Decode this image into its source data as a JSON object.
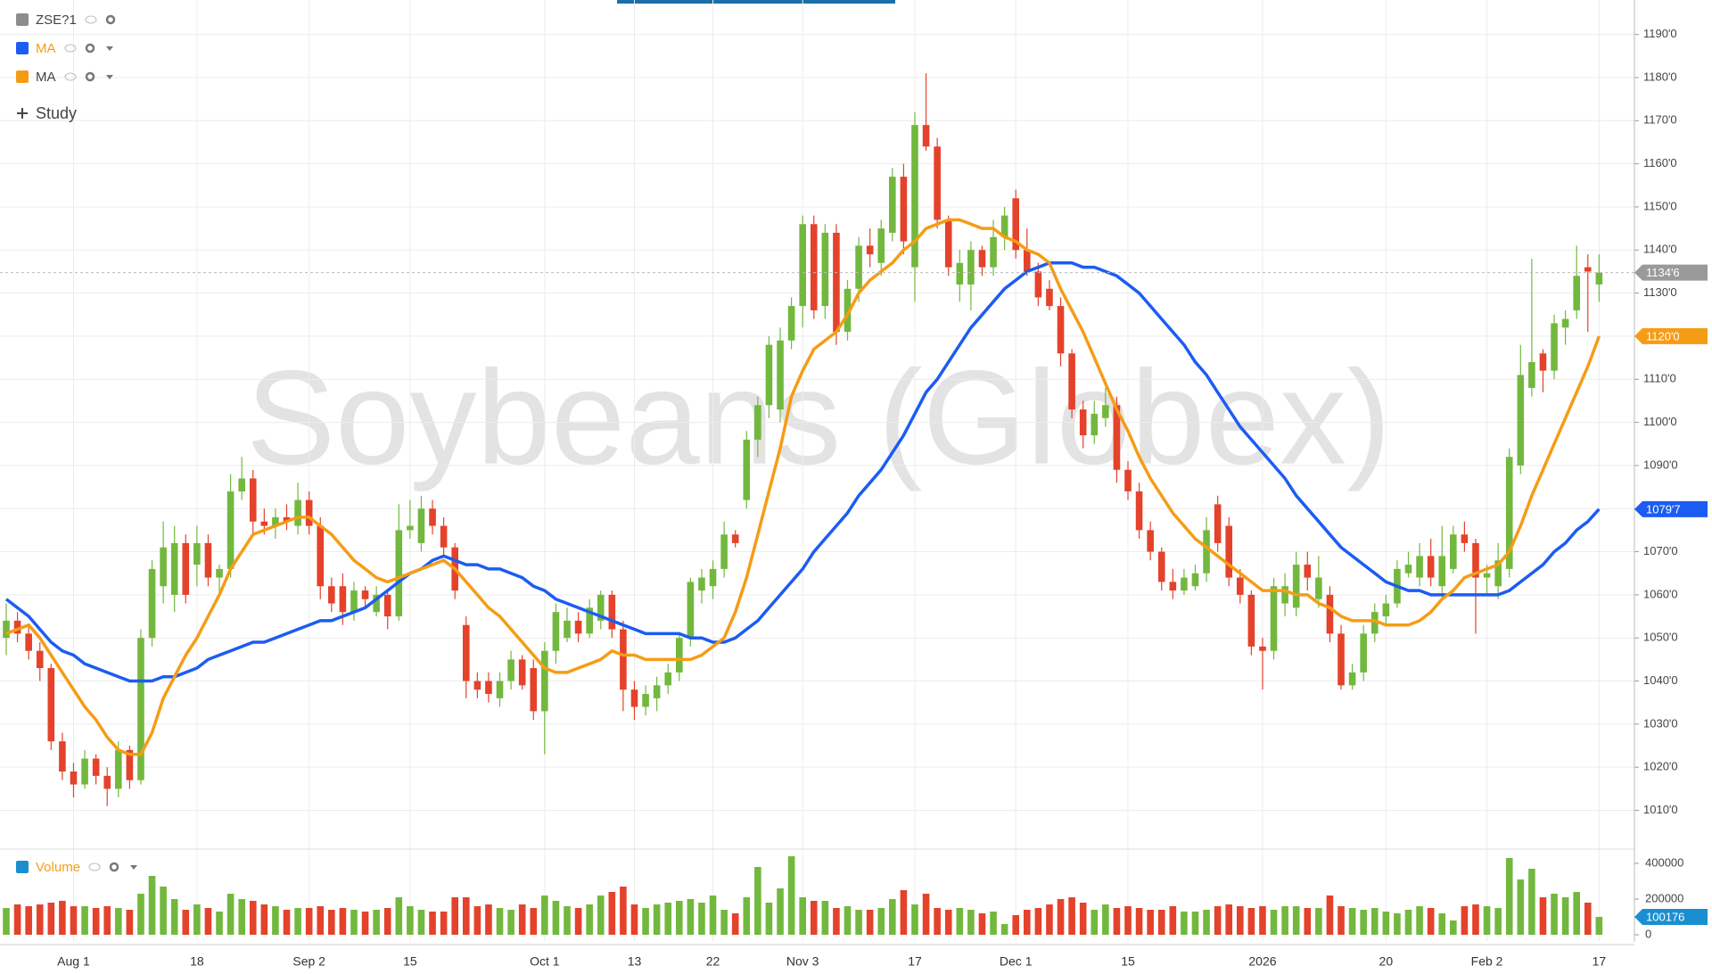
{
  "legend": {
    "symbol": "ZSE?1",
    "add_study": "Study",
    "volume_label": "Volume"
  },
  "chart_data": [
    {
      "type": "candlestick",
      "watermark": "Soybeans (Globex)",
      "categories": [
        null,
        null,
        null,
        null,
        null,
        null,
        "Aug 1",
        null,
        null,
        null,
        null,
        null,
        null,
        null,
        null,
        null,
        null,
        "18",
        null,
        null,
        null,
        null,
        null,
        null,
        null,
        null,
        null,
        "Sep 2",
        null,
        null,
        null,
        null,
        null,
        null,
        null,
        null,
        "15",
        null,
        null,
        null,
        null,
        null,
        null,
        null,
        null,
        null,
        null,
        null,
        "Oct 1",
        null,
        null,
        null,
        null,
        null,
        null,
        null,
        "13",
        null,
        null,
        null,
        null,
        null,
        null,
        "22",
        null,
        null,
        null,
        null,
        null,
        null,
        null,
        "Nov 3",
        null,
        null,
        null,
        null,
        null,
        null,
        null,
        null,
        null,
        "17",
        null,
        null,
        null,
        null,
        null,
        null,
        null,
        null,
        "Dec 1",
        null,
        null,
        null,
        null,
        null,
        null,
        null,
        null,
        null,
        "15",
        null,
        null,
        null,
        null,
        null,
        null,
        null,
        null,
        null,
        null,
        null,
        "2026",
        null,
        null,
        null,
        null,
        null,
        null,
        null,
        null,
        null,
        null,
        "20",
        null,
        null,
        null,
        null,
        null,
        null,
        null,
        null,
        "Feb 2",
        null,
        null,
        null,
        null,
        null,
        null,
        null,
        null,
        null,
        "17"
      ],
      "open": [
        1050,
        1054,
        1051,
        1047,
        1043,
        1026,
        1019,
        1016,
        1022,
        1018,
        1015,
        1024,
        1017,
        1050,
        1062,
        1060,
        1072,
        1067,
        1072,
        1064,
        1066,
        1084,
        1087,
        1077,
        1076,
        1078,
        1076,
        1082,
        1076,
        1062,
        1062,
        1056,
        1061,
        1056,
        1060,
        1055,
        1075,
        1072,
        1080,
        1076,
        1071,
        1053,
        1040,
        1040,
        1036,
        1040,
        1045,
        1043,
        1033,
        1047,
        1050,
        1054,
        1051,
        1054,
        1060,
        1052,
        1038,
        1034,
        1036,
        1039,
        1042,
        1050,
        1061,
        1062,
        1066,
        1074,
        1082,
        1096,
        1104,
        1103,
        1119,
        1127,
        1146,
        1127,
        1144,
        1121,
        1131,
        1141,
        1137,
        1144,
        1157,
        1136,
        1169,
        1164,
        1147,
        1132,
        1132,
        1140,
        1136,
        1143,
        1152,
        1140,
        1135,
        1131,
        1127,
        1116,
        1103,
        1097,
        1101,
        1104,
        1089,
        1084,
        1075,
        1070,
        1063,
        1061,
        1062,
        1065,
        1081,
        1076,
        1064,
        1060,
        1048,
        1047,
        1058,
        1057,
        1067,
        1059,
        1060,
        1051,
        1039,
        1042,
        1051,
        1055,
        1058,
        1065,
        1064,
        1069,
        1062,
        1066,
        1074,
        1072,
        1064,
        1062,
        1066,
        1090,
        1108,
        1116,
        1112,
        1122,
        1126,
        1136,
        1132
      ],
      "high": [
        1058,
        1056,
        1053,
        1049,
        1044,
        1028,
        1021,
        1024,
        1023,
        1020,
        1026,
        1025,
        1052,
        1068,
        1077,
        1076,
        1074,
        1076,
        1074,
        1067,
        1088,
        1092,
        1089,
        1080,
        1080,
        1081,
        1086,
        1084,
        1078,
        1064,
        1065,
        1063,
        1062,
        1062,
        1061,
        1081,
        1082,
        1083,
        1082,
        1078,
        1072,
        1055,
        1042,
        1042,
        1042,
        1047,
        1046,
        1045,
        1049,
        1058,
        1057,
        1056,
        1059,
        1061,
        1061,
        1054,
        1040,
        1039,
        1041,
        1044,
        1051,
        1064,
        1066,
        1068,
        1077,
        1075,
        1098,
        1106,
        1120,
        1122,
        1129,
        1148,
        1148,
        1146,
        1146,
        1133,
        1143,
        1145,
        1147,
        1159,
        1160,
        1172,
        1181,
        1166,
        1148,
        1140,
        1142,
        1141,
        1147,
        1150,
        1154,
        1145,
        1137,
        1133,
        1129,
        1117,
        1105,
        1105,
        1108,
        1106,
        1091,
        1086,
        1077,
        1071,
        1066,
        1066,
        1067,
        1078,
        1083,
        1078,
        1066,
        1061,
        1050,
        1064,
        1065,
        1070,
        1070,
        1069,
        1062,
        1053,
        1044,
        1053,
        1058,
        1060,
        1068,
        1070,
        1072,
        1073,
        1076,
        1076,
        1077,
        1073,
        1067,
        1072,
        1094,
        1118,
        1138,
        1117,
        1125,
        1126,
        1141,
        1139,
        1139
      ],
      "low": [
        1046,
        1049,
        1045,
        1040,
        1024,
        1017,
        1013,
        1015,
        1016,
        1011,
        1013,
        1015,
        1016,
        1048,
        1058,
        1056,
        1058,
        1062,
        1062,
        1060,
        1064,
        1082,
        1074,
        1074,
        1073,
        1075,
        1074,
        1074,
        1059,
        1056,
        1053,
        1054,
        1057,
        1055,
        1052,
        1054,
        1073,
        1070,
        1074,
        1069,
        1059,
        1036,
        1036,
        1035,
        1034,
        1038,
        1038,
        1031,
        1023,
        1044,
        1049,
        1049,
        1050,
        1052,
        1050,
        1033,
        1031,
        1032,
        1033,
        1037,
        1040,
        1048,
        1058,
        1059,
        1064,
        1071,
        1080,
        1092,
        1101,
        1100,
        1117,
        1122,
        1124,
        1124,
        1118,
        1119,
        1128,
        1136,
        1134,
        1142,
        1139,
        1128,
        1163,
        1145,
        1134,
        1128,
        1126,
        1134,
        1134,
        1140,
        1138,
        1134,
        1127,
        1126,
        1113,
        1101,
        1094,
        1095,
        1099,
        1086,
        1082,
        1073,
        1068,
        1061,
        1059,
        1060,
        1061,
        1063,
        1070,
        1062,
        1058,
        1046,
        1038,
        1045,
        1055,
        1055,
        1061,
        1057,
        1049,
        1038,
        1038,
        1040,
        1049,
        1053,
        1057,
        1064,
        1062,
        1062,
        1059,
        1065,
        1070,
        1051,
        1060,
        1059,
        1064,
        1088,
        1106,
        1107,
        1110,
        1118,
        1124,
        1121,
        1128
      ],
      "close": [
        1054,
        1051,
        1047,
        1043,
        1026,
        1019,
        1016,
        1022,
        1018,
        1015,
        1024,
        1017,
        1050,
        1066,
        1071,
        1072,
        1060,
        1072,
        1064,
        1066,
        1084,
        1087,
        1077,
        1076,
        1078,
        1077,
        1082,
        1076,
        1062,
        1058,
        1056,
        1061,
        1059,
        1060,
        1055,
        1075,
        1076,
        1080,
        1076,
        1071,
        1061,
        1040,
        1038,
        1037,
        1040,
        1045,
        1039,
        1033,
        1047,
        1056,
        1054,
        1051,
        1057,
        1060,
        1052,
        1038,
        1034,
        1037,
        1039,
        1042,
        1050,
        1063,
        1064,
        1066,
        1074,
        1072,
        1096,
        1104,
        1118,
        1119,
        1127,
        1146,
        1126,
        1144,
        1121,
        1131,
        1141,
        1139,
        1145,
        1157,
        1142,
        1169,
        1164,
        1147,
        1136,
        1137,
        1140,
        1136,
        1143,
        1148,
        1140,
        1135,
        1129,
        1127,
        1116,
        1103,
        1097,
        1102,
        1104,
        1089,
        1084,
        1075,
        1070,
        1063,
        1061,
        1064,
        1065,
        1075,
        1072,
        1064,
        1060,
        1048,
        1047,
        1062,
        1062,
        1067,
        1064,
        1064,
        1051,
        1039,
        1042,
        1051,
        1056,
        1058,
        1066,
        1067,
        1069,
        1064,
        1069,
        1074,
        1072,
        1064,
        1065,
        1068,
        1092,
        1111,
        1114,
        1112,
        1123,
        1124,
        1134,
        1135,
        1134.75
      ],
      "last_price_label": "1134'6",
      "up_color": "#72b83e",
      "down_color": "#e4422b",
      "ylim": [
        1001,
        1198
      ],
      "yticks": [
        {
          "value": 1010,
          "label": "1010'0"
        },
        {
          "value": 1020,
          "label": "1020'0"
        },
        {
          "value": 1030,
          "label": "1030'0"
        },
        {
          "value": 1040,
          "label": "1040'0"
        },
        {
          "value": 1050,
          "label": "1050'0"
        },
        {
          "value": 1060,
          "label": "1060'0"
        },
        {
          "value": 1070,
          "label": "1070'0"
        },
        {
          "value": 1080,
          "label": "1080'0"
        },
        {
          "value": 1090,
          "label": "1090'0"
        },
        {
          "value": 1100,
          "label": "1100'0"
        },
        {
          "value": 1110,
          "label": "1110'0"
        },
        {
          "value": 1120,
          "label": "1120'0"
        },
        {
          "value": 1130,
          "label": "1130'0"
        },
        {
          "value": 1140,
          "label": "1140'0"
        },
        {
          "value": 1150,
          "label": "1150'0"
        },
        {
          "value": 1160,
          "label": "1160'0"
        },
        {
          "value": 1170,
          "label": "1170'0"
        },
        {
          "value": 1180,
          "label": "1180'0"
        },
        {
          "value": 1190,
          "label": "1190'0"
        }
      ],
      "grid": true,
      "series": [
        {
          "name": "MA",
          "color": "#1c5cf2",
          "last_label": "1079'7",
          "values": [
            1059,
            1057,
            1055,
            1052,
            1049,
            1047,
            1046,
            1044,
            1043,
            1042,
            1041,
            1040,
            1040,
            1040,
            1041,
            1041,
            1042,
            1043,
            1045,
            1046,
            1047,
            1048,
            1049,
            1049,
            1050,
            1051,
            1052,
            1053,
            1054,
            1054,
            1055,
            1056,
            1057,
            1059,
            1061,
            1063,
            1065,
            1066,
            1068,
            1069,
            1068,
            1067,
            1067,
            1066,
            1066,
            1065,
            1064,
            1062,
            1061,
            1059,
            1058,
            1057,
            1056,
            1055,
            1054,
            1053,
            1052,
            1051,
            1051,
            1051,
            1051,
            1050,
            1050,
            1049,
            1049,
            1050,
            1052,
            1054,
            1057,
            1060,
            1063,
            1066,
            1070,
            1073,
            1076,
            1079,
            1083,
            1086,
            1089,
            1093,
            1097,
            1102,
            1107,
            1110,
            1114,
            1118,
            1122,
            1125,
            1128,
            1131,
            1133,
            1135,
            1136,
            1137,
            1137,
            1137,
            1136,
            1136,
            1135,
            1134,
            1132,
            1130,
            1127,
            1124,
            1121,
            1118,
            1114,
            1111,
            1107,
            1103,
            1099,
            1096,
            1093,
            1090,
            1087,
            1083,
            1080,
            1077,
            1074,
            1071,
            1069,
            1067,
            1065,
            1063,
            1062,
            1061,
            1061,
            1060,
            1060,
            1060,
            1060,
            1060,
            1060,
            1060,
            1061,
            1063,
            1065,
            1067,
            1070,
            1072,
            1075,
            1077,
            1079.875
          ]
        },
        {
          "name": "MA",
          "color": "#f59c16",
          "last_label": "1120'0",
          "values": [
            1051,
            1052,
            1053,
            1050,
            1046,
            1042,
            1038,
            1034,
            1031,
            1027,
            1024,
            1023,
            1023,
            1028,
            1036,
            1041,
            1046,
            1050,
            1055,
            1060,
            1066,
            1070,
            1074,
            1075,
            1076,
            1077,
            1078,
            1078,
            1076,
            1074,
            1071,
            1068,
            1066,
            1064,
            1063,
            1064,
            1065,
            1066,
            1067,
            1068,
            1066,
            1063,
            1060,
            1057,
            1055,
            1052,
            1049,
            1046,
            1043,
            1042,
            1042,
            1043,
            1044,
            1045,
            1047,
            1046,
            1046,
            1045,
            1045,
            1045,
            1045,
            1045,
            1046,
            1048,
            1050,
            1056,
            1064,
            1074,
            1084,
            1094,
            1106,
            1112,
            1117,
            1119,
            1121,
            1125,
            1130,
            1133,
            1135,
            1137,
            1140,
            1142,
            1145,
            1146,
            1147,
            1147,
            1146,
            1145,
            1145,
            1143,
            1142,
            1140,
            1139,
            1137,
            1131,
            1126,
            1121,
            1115,
            1109,
            1103,
            1098,
            1092,
            1087,
            1083,
            1079,
            1076,
            1073,
            1071,
            1069,
            1067,
            1065,
            1063,
            1061,
            1061,
            1061,
            1060,
            1060,
            1058,
            1057,
            1055,
            1054,
            1054,
            1054,
            1053,
            1053,
            1053,
            1054,
            1056,
            1059,
            1061,
            1064,
            1065,
            1066,
            1067,
            1070,
            1076,
            1083,
            1089,
            1095,
            1101,
            1107,
            1113,
            1120
          ]
        }
      ]
    },
    {
      "type": "bar",
      "name": "Volume",
      "color": "#1a8fd0",
      "values": [
        150000,
        170000,
        160000,
        170000,
        180000,
        190000,
        160000,
        160000,
        150000,
        160000,
        150000,
        140000,
        230000,
        330000,
        270000,
        200000,
        140000,
        170000,
        150000,
        130000,
        230000,
        200000,
        190000,
        170000,
        160000,
        140000,
        150000,
        150000,
        160000,
        140000,
        150000,
        140000,
        130000,
        140000,
        150000,
        210000,
        160000,
        140000,
        130000,
        130000,
        210000,
        210000,
        160000,
        170000,
        150000,
        140000,
        170000,
        150000,
        220000,
        190000,
        160000,
        150000,
        170000,
        220000,
        240000,
        270000,
        170000,
        150000,
        170000,
        180000,
        190000,
        200000,
        180000,
        220000,
        140000,
        120000,
        210000,
        380000,
        180000,
        260000,
        440000,
        210000,
        190000,
        190000,
        150000,
        160000,
        140000,
        140000,
        150000,
        200000,
        250000,
        170000,
        230000,
        150000,
        140000,
        150000,
        140000,
        120000,
        130000,
        60000,
        110000,
        140000,
        150000,
        170000,
        200000,
        210000,
        180000,
        140000,
        170000,
        150000,
        160000,
        150000,
        140000,
        140000,
        160000,
        130000,
        130000,
        140000,
        160000,
        170000,
        160000,
        150000,
        160000,
        140000,
        160000,
        160000,
        150000,
        150000,
        220000,
        160000,
        150000,
        140000,
        150000,
        130000,
        120000,
        140000,
        160000,
        150000,
        120000,
        80000,
        160000,
        170000,
        160000,
        150000,
        430000,
        310000,
        370000,
        210000,
        230000,
        210000,
        240000,
        180000,
        100176
      ],
      "ylim": [
        -40000,
        450000
      ],
      "yticks": [
        0,
        200000,
        400000
      ]
    }
  ]
}
